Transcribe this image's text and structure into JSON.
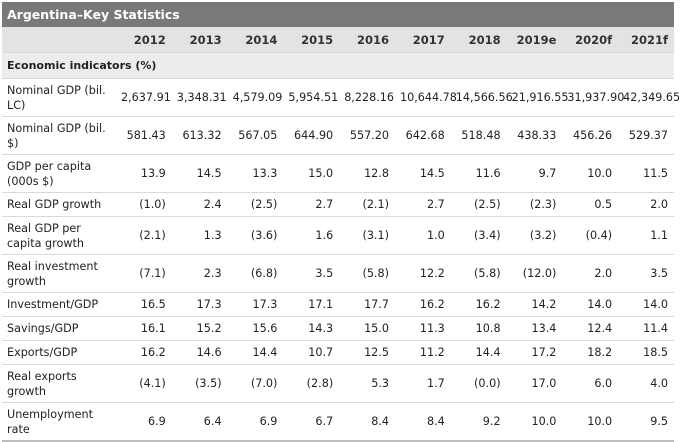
{
  "title": "Argentina–Key Statistics",
  "years": [
    "2012",
    "2013",
    "2014",
    "2015",
    "2016",
    "2017",
    "2018",
    "2019e",
    "2020f",
    "2021f"
  ],
  "section_label": "Economic indicators (%)",
  "rows": [
    {
      "label": "Nominal GDP (bil. LC)",
      "tall": true,
      "values": [
        "2,637.91",
        "3,348.31",
        "4,579.09",
        "5,954.51",
        "8,228.16",
        "10,644.78",
        "14,566.56",
        "21,916.55",
        "31,937.90",
        "42,349.65"
      ]
    },
    {
      "label": "Nominal GDP (bil. $)",
      "tall": true,
      "values": [
        "581.43",
        "613.32",
        "567.05",
        "644.90",
        "557.20",
        "642.68",
        "518.48",
        "438.33",
        "456.26",
        "529.37"
      ]
    },
    {
      "label": "GDP per capita (000s $)",
      "tall": true,
      "values": [
        "13.9",
        "14.5",
        "13.3",
        "15.0",
        "12.8",
        "14.5",
        "11.6",
        "9.7",
        "10.0",
        "11.5"
      ]
    },
    {
      "label": "Real GDP growth",
      "tall": false,
      "values": [
        "(1.0)",
        "2.4",
        "(2.5)",
        "2.7",
        "(2.1)",
        "2.7",
        "(2.5)",
        "(2.3)",
        "0.5",
        "2.0"
      ]
    },
    {
      "label": "Real GDP per capita growth",
      "tall": true,
      "values": [
        "(2.1)",
        "1.3",
        "(3.6)",
        "1.6",
        "(3.1)",
        "1.0",
        "(3.4)",
        "(3.2)",
        "(0.4)",
        "1.1"
      ]
    },
    {
      "label": "Real investment growth",
      "tall": true,
      "values": [
        "(7.1)",
        "2.3",
        "(6.8)",
        "3.5",
        "(5.8)",
        "12.2",
        "(5.8)",
        "(12.0)",
        "2.0",
        "3.5"
      ]
    },
    {
      "label": "Investment/GDP",
      "tall": false,
      "values": [
        "16.5",
        "17.3",
        "17.3",
        "17.1",
        "17.7",
        "16.2",
        "16.2",
        "14.2",
        "14.0",
        "14.0"
      ]
    },
    {
      "label": "Savings/GDP",
      "tall": false,
      "values": [
        "16.1",
        "15.2",
        "15.6",
        "14.3",
        "15.0",
        "11.3",
        "10.8",
        "13.4",
        "12.4",
        "11.4"
      ]
    },
    {
      "label": "Exports/GDP",
      "tall": false,
      "values": [
        "16.2",
        "14.6",
        "14.4",
        "10.7",
        "12.5",
        "11.2",
        "14.4",
        "17.2",
        "18.2",
        "18.5"
      ]
    },
    {
      "label": "Real exports growth",
      "tall": true,
      "values": [
        "(4.1)",
        "(3.5)",
        "(7.0)",
        "(2.8)",
        "5.3",
        "1.7",
        "(0.0)",
        "17.0",
        "6.0",
        "4.0"
      ]
    },
    {
      "label": "Unemployment rate",
      "tall": true,
      "values": [
        "6.9",
        "6.4",
        "6.9",
        "6.7",
        "8.4",
        "8.4",
        "9.2",
        "10.0",
        "10.0",
        "9.5"
      ]
    }
  ]
}
